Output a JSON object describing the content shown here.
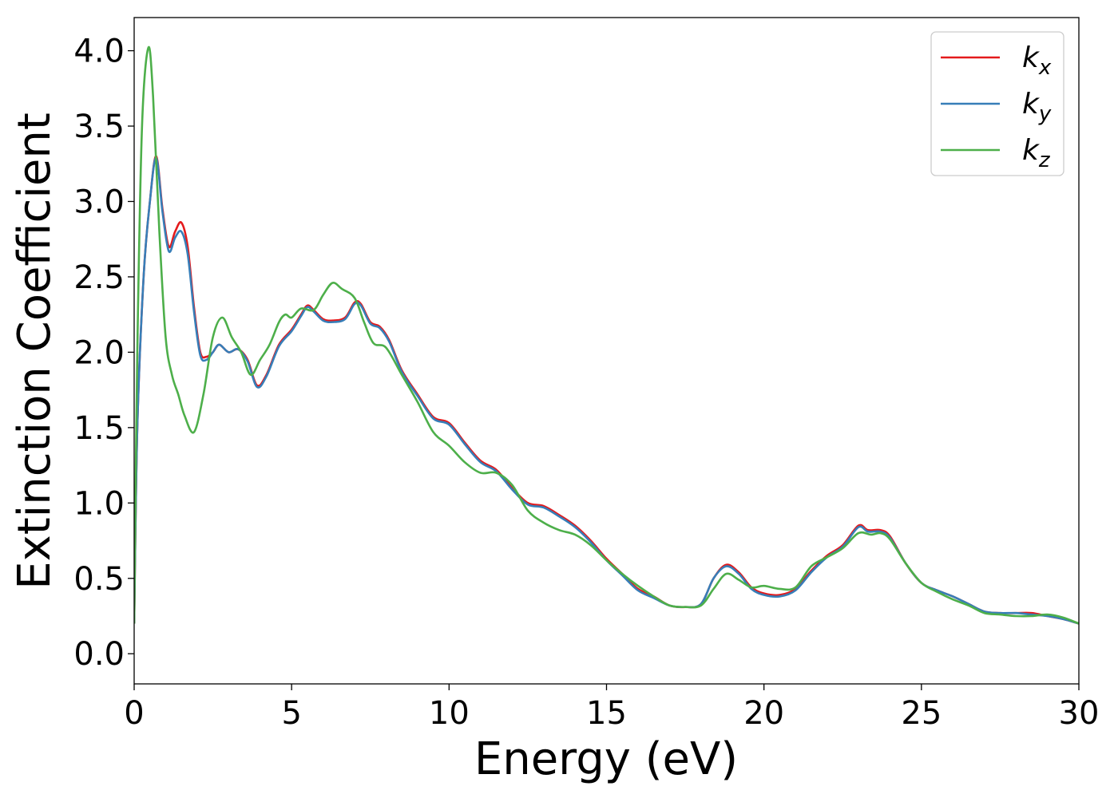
{
  "chart_data": {
    "type": "line",
    "xlabel": "Energy (eV)",
    "ylabel": "Extinction Coefficient",
    "xlim": [
      0,
      30
    ],
    "ylim": [
      -0.2,
      4.22
    ],
    "xticks": [
      0,
      5,
      10,
      15,
      20,
      25,
      30
    ],
    "xtick_labels": [
      "0",
      "5",
      "10",
      "15",
      "20",
      "25",
      "30"
    ],
    "yticks": [
      0.0,
      0.5,
      1.0,
      1.5,
      2.0,
      2.5,
      3.0,
      3.5,
      4.0
    ],
    "ytick_labels": [
      "0.0",
      "0.5",
      "1.0",
      "1.5",
      "2.0",
      "2.5",
      "3.0",
      "3.5",
      "4.0"
    ],
    "grid": false,
    "legend_position": "top-right",
    "series": [
      {
        "name": "k",
        "sub": "x",
        "color": "#e41a1c",
        "points": [
          [
            0,
            0.2
          ],
          [
            0.1,
            1.5
          ],
          [
            0.3,
            2.5
          ],
          [
            0.5,
            3.0
          ],
          [
            0.7,
            3.3
          ],
          [
            0.9,
            2.95
          ],
          [
            1.1,
            2.7
          ],
          [
            1.3,
            2.8
          ],
          [
            1.5,
            2.86
          ],
          [
            1.7,
            2.7
          ],
          [
            1.9,
            2.3
          ],
          [
            2.1,
            2.0
          ],
          [
            2.3,
            1.97
          ],
          [
            2.5,
            2.0
          ],
          [
            2.7,
            2.05
          ],
          [
            3.0,
            2.0
          ],
          [
            3.3,
            2.02
          ],
          [
            3.6,
            1.95
          ],
          [
            3.9,
            1.78
          ],
          [
            4.2,
            1.85
          ],
          [
            4.6,
            2.05
          ],
          [
            5.0,
            2.15
          ],
          [
            5.3,
            2.25
          ],
          [
            5.5,
            2.31
          ],
          [
            5.7,
            2.28
          ],
          [
            6.0,
            2.22
          ],
          [
            6.3,
            2.21
          ],
          [
            6.7,
            2.23
          ],
          [
            7.0,
            2.33
          ],
          [
            7.2,
            2.32
          ],
          [
            7.5,
            2.2
          ],
          [
            7.8,
            2.17
          ],
          [
            8.1,
            2.08
          ],
          [
            8.5,
            1.88
          ],
          [
            9.0,
            1.72
          ],
          [
            9.5,
            1.57
          ],
          [
            10.0,
            1.53
          ],
          [
            10.5,
            1.4
          ],
          [
            11.0,
            1.28
          ],
          [
            11.5,
            1.22
          ],
          [
            12.0,
            1.1
          ],
          [
            12.5,
            1.0
          ],
          [
            13.0,
            0.98
          ],
          [
            13.5,
            0.92
          ],
          [
            14.0,
            0.85
          ],
          [
            14.5,
            0.75
          ],
          [
            15.0,
            0.63
          ],
          [
            15.5,
            0.53
          ],
          [
            16.0,
            0.43
          ],
          [
            16.5,
            0.38
          ],
          [
            17.0,
            0.32
          ],
          [
            17.5,
            0.31
          ],
          [
            18.0,
            0.33
          ],
          [
            18.4,
            0.5
          ],
          [
            18.8,
            0.59
          ],
          [
            19.2,
            0.54
          ],
          [
            19.6,
            0.44
          ],
          [
            20.0,
            0.4
          ],
          [
            20.5,
            0.39
          ],
          [
            21.0,
            0.43
          ],
          [
            21.5,
            0.55
          ],
          [
            22.0,
            0.65
          ],
          [
            22.5,
            0.72
          ],
          [
            23.0,
            0.85
          ],
          [
            23.3,
            0.82
          ],
          [
            23.7,
            0.82
          ],
          [
            24.0,
            0.78
          ],
          [
            24.5,
            0.6
          ],
          [
            25.0,
            0.47
          ],
          [
            25.5,
            0.42
          ],
          [
            26.0,
            0.38
          ],
          [
            26.5,
            0.33
          ],
          [
            27.0,
            0.28
          ],
          [
            27.5,
            0.27
          ],
          [
            28.0,
            0.27
          ],
          [
            28.5,
            0.27
          ],
          [
            29.0,
            0.25
          ],
          [
            29.5,
            0.23
          ],
          [
            30.0,
            0.2
          ]
        ]
      },
      {
        "name": "k",
        "sub": "y",
        "color": "#377eb8",
        "points": [
          [
            0,
            0.2
          ],
          [
            0.1,
            1.5
          ],
          [
            0.3,
            2.5
          ],
          [
            0.5,
            3.0
          ],
          [
            0.7,
            3.29
          ],
          [
            0.9,
            2.93
          ],
          [
            1.1,
            2.67
          ],
          [
            1.3,
            2.76
          ],
          [
            1.5,
            2.8
          ],
          [
            1.7,
            2.65
          ],
          [
            1.9,
            2.27
          ],
          [
            2.1,
            1.98
          ],
          [
            2.3,
            1.95
          ],
          [
            2.5,
            2.0
          ],
          [
            2.7,
            2.05
          ],
          [
            3.0,
            2.0
          ],
          [
            3.3,
            2.02
          ],
          [
            3.6,
            1.94
          ],
          [
            3.9,
            1.77
          ],
          [
            4.2,
            1.84
          ],
          [
            4.6,
            2.04
          ],
          [
            5.0,
            2.14
          ],
          [
            5.3,
            2.24
          ],
          [
            5.5,
            2.3
          ],
          [
            5.7,
            2.27
          ],
          [
            6.0,
            2.21
          ],
          [
            6.3,
            2.2
          ],
          [
            6.7,
            2.22
          ],
          [
            7.0,
            2.32
          ],
          [
            7.2,
            2.31
          ],
          [
            7.5,
            2.19
          ],
          [
            7.8,
            2.16
          ],
          [
            8.1,
            2.07
          ],
          [
            8.5,
            1.87
          ],
          [
            9.0,
            1.71
          ],
          [
            9.5,
            1.56
          ],
          [
            10.0,
            1.52
          ],
          [
            10.5,
            1.39
          ],
          [
            11.0,
            1.27
          ],
          [
            11.5,
            1.21
          ],
          [
            12.0,
            1.09
          ],
          [
            12.5,
            0.99
          ],
          [
            13.0,
            0.97
          ],
          [
            13.5,
            0.91
          ],
          [
            14.0,
            0.84
          ],
          [
            14.5,
            0.74
          ],
          [
            15.0,
            0.62
          ],
          [
            15.5,
            0.52
          ],
          [
            16.0,
            0.42
          ],
          [
            16.5,
            0.37
          ],
          [
            17.0,
            0.32
          ],
          [
            17.5,
            0.31
          ],
          [
            18.0,
            0.33
          ],
          [
            18.4,
            0.5
          ],
          [
            18.8,
            0.58
          ],
          [
            19.2,
            0.53
          ],
          [
            19.6,
            0.43
          ],
          [
            20.0,
            0.39
          ],
          [
            20.5,
            0.38
          ],
          [
            21.0,
            0.42
          ],
          [
            21.5,
            0.54
          ],
          [
            22.0,
            0.64
          ],
          [
            22.5,
            0.71
          ],
          [
            23.0,
            0.84
          ],
          [
            23.3,
            0.81
          ],
          [
            23.7,
            0.81
          ],
          [
            24.0,
            0.77
          ],
          [
            24.5,
            0.6
          ],
          [
            25.0,
            0.47
          ],
          [
            25.5,
            0.42
          ],
          [
            26.0,
            0.38
          ],
          [
            26.5,
            0.33
          ],
          [
            27.0,
            0.28
          ],
          [
            27.5,
            0.27
          ],
          [
            28.0,
            0.27
          ],
          [
            28.5,
            0.26
          ],
          [
            29.0,
            0.25
          ],
          [
            29.5,
            0.23
          ],
          [
            30.0,
            0.2
          ]
        ]
      },
      {
        "name": "k",
        "sub": "z",
        "color": "#4daf4a",
        "points": [
          [
            0,
            0.2
          ],
          [
            0.1,
            2.0
          ],
          [
            0.25,
            3.5
          ],
          [
            0.45,
            4.02
          ],
          [
            0.6,
            3.7
          ],
          [
            0.8,
            2.8
          ],
          [
            1.0,
            2.1
          ],
          [
            1.2,
            1.85
          ],
          [
            1.4,
            1.72
          ],
          [
            1.6,
            1.58
          ],
          [
            1.9,
            1.47
          ],
          [
            2.2,
            1.72
          ],
          [
            2.5,
            2.1
          ],
          [
            2.8,
            2.23
          ],
          [
            3.1,
            2.1
          ],
          [
            3.4,
            2.0
          ],
          [
            3.7,
            1.85
          ],
          [
            4.0,
            1.95
          ],
          [
            4.3,
            2.05
          ],
          [
            4.6,
            2.2
          ],
          [
            4.8,
            2.25
          ],
          [
            5.0,
            2.23
          ],
          [
            5.3,
            2.29
          ],
          [
            5.7,
            2.28
          ],
          [
            6.0,
            2.38
          ],
          [
            6.3,
            2.46
          ],
          [
            6.6,
            2.42
          ],
          [
            7.0,
            2.36
          ],
          [
            7.3,
            2.2
          ],
          [
            7.6,
            2.06
          ],
          [
            8.0,
            2.03
          ],
          [
            8.5,
            1.85
          ],
          [
            9.0,
            1.67
          ],
          [
            9.5,
            1.47
          ],
          [
            10.0,
            1.38
          ],
          [
            10.5,
            1.27
          ],
          [
            11.0,
            1.2
          ],
          [
            11.5,
            1.2
          ],
          [
            12.0,
            1.12
          ],
          [
            12.5,
            0.95
          ],
          [
            13.0,
            0.87
          ],
          [
            13.5,
            0.82
          ],
          [
            14.0,
            0.79
          ],
          [
            14.5,
            0.72
          ],
          [
            15.0,
            0.62
          ],
          [
            15.5,
            0.53
          ],
          [
            16.0,
            0.45
          ],
          [
            16.5,
            0.38
          ],
          [
            17.0,
            0.32
          ],
          [
            17.5,
            0.31
          ],
          [
            18.0,
            0.32
          ],
          [
            18.4,
            0.43
          ],
          [
            18.8,
            0.53
          ],
          [
            19.2,
            0.49
          ],
          [
            19.6,
            0.44
          ],
          [
            20.0,
            0.45
          ],
          [
            20.5,
            0.43
          ],
          [
            21.0,
            0.44
          ],
          [
            21.5,
            0.58
          ],
          [
            22.0,
            0.64
          ],
          [
            22.5,
            0.7
          ],
          [
            23.0,
            0.8
          ],
          [
            23.4,
            0.79
          ],
          [
            23.7,
            0.8
          ],
          [
            24.0,
            0.76
          ],
          [
            24.5,
            0.6
          ],
          [
            25.0,
            0.47
          ],
          [
            25.5,
            0.41
          ],
          [
            26.0,
            0.36
          ],
          [
            26.5,
            0.32
          ],
          [
            27.0,
            0.27
          ],
          [
            27.5,
            0.26
          ],
          [
            28.0,
            0.25
          ],
          [
            28.5,
            0.25
          ],
          [
            29.0,
            0.26
          ],
          [
            29.5,
            0.24
          ],
          [
            30.0,
            0.2
          ]
        ]
      }
    ]
  }
}
